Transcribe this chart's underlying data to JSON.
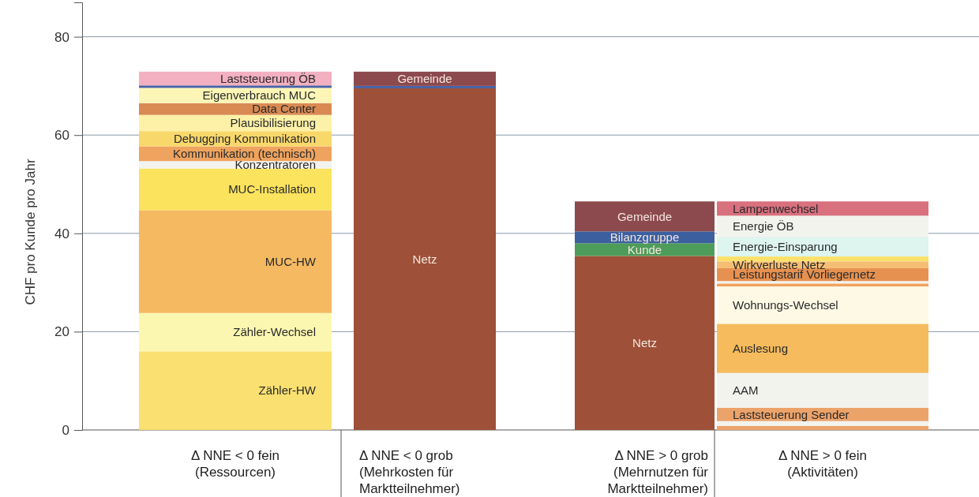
{
  "chart_data": {
    "type": "bar",
    "stacked": true,
    "ylabel": "CHF pro Kunde pro Jahr",
    "categories": [
      "Δ NNE < 0 fein\n(Ressourcen)",
      "Δ NNE < 0 grob\n(Mehrkosten für\nMarktteilnehmer)",
      "Δ NNE > 0 grob\n(Mehrnutzen für\nMarktteilnehmer)",
      "Δ NNE > 0 fein\n(Aktivitäten)"
    ],
    "ylim": [
      0,
      87
    ],
    "yticks": [
      0,
      20,
      40,
      60,
      80
    ],
    "grid": "y",
    "series": [
      {
        "name": "Zähler-HW",
        "color": "#f9e070",
        "values": [
          16,
          null,
          null,
          null
        ]
      },
      {
        "name": "Zähler-Wechsel",
        "color": "#fcf7b0",
        "values": [
          7.8,
          null,
          null,
          null
        ]
      },
      {
        "name": "MUC-HW",
        "color": "#f4b961",
        "values": [
          20.9,
          null,
          null,
          null
        ]
      },
      {
        "name": "MUC-Installation",
        "color": "#fbe35d",
        "values": [
          8.5,
          null,
          null,
          null
        ]
      },
      {
        "name": "Konzentratoren",
        "color": "#f3f3ee",
        "values": [
          1.5,
          null,
          null,
          null
        ]
      },
      {
        "name": "Kommunikation (technisch)",
        "color": "#eea35e",
        "values": [
          3,
          null,
          null,
          null
        ]
      },
      {
        "name": "Debugging Kommunikation",
        "color": "#f9d86b",
        "values": [
          3.1,
          null,
          null,
          null
        ]
      },
      {
        "name": "Plausibilisierung",
        "color": "#fcf1a6",
        "values": [
          3.3,
          null,
          null,
          null
        ]
      },
      {
        "name": "Data Center",
        "color": "#d98a52",
        "values": [
          2.4,
          null,
          null,
          null
        ]
      },
      {
        "name": "Eigenverbrauch MUC",
        "color": "#fcf5b6",
        "values": [
          3.1,
          null,
          null,
          null
        ]
      },
      {
        "color": "#4a64a6",
        "values": [
          0.5,
          null,
          null,
          null
        ]
      },
      {
        "name": "Laststeuerung ÖB",
        "color": "#f2b0c0",
        "values": [
          2.8,
          null,
          null,
          null
        ]
      },
      {
        "name": "Netz",
        "color": "#9e5038",
        "values": [
          null,
          69.5,
          35.4,
          null
        ]
      },
      {
        "color": "#4a64a6",
        "values": [
          null,
          0.5,
          null,
          null
        ]
      },
      {
        "name": "Kunde",
        "color": "#4e9c5a",
        "values": [
          null,
          null,
          2.6,
          null
        ]
      },
      {
        "name": "Bilanzgruppe",
        "color": "#3c5fa0",
        "values": [
          null,
          null,
          2.4,
          null
        ]
      },
      {
        "name": "Gemeinde",
        "color": "#8c4a4e",
        "values": [
          null,
          2.9,
          6.1,
          null
        ]
      },
      {
        "color": "#eca36a",
        "values": [
          null,
          null,
          null,
          0.8
        ]
      },
      {
        "color": "#f3f3ee",
        "values": [
          null,
          null,
          null,
          1
        ]
      },
      {
        "name": "Laststeuerung Sender",
        "color": "#eca36a",
        "values": [
          null,
          null,
          null,
          2.7
        ]
      },
      {
        "name": "AAM",
        "color": "#f3f3ee",
        "values": [
          null,
          null,
          null,
          7.1
        ]
      },
      {
        "name": "Auslesung",
        "color": "#f5bb5c",
        "values": [
          null,
          null,
          null,
          10
        ]
      },
      {
        "name": "Wohnungs-Wechsel",
        "color": "#fdf9e4",
        "values": [
          null,
          null,
          null,
          7.6
        ]
      },
      {
        "color": "#eea35e",
        "values": [
          null,
          null,
          null,
          0.6
        ]
      },
      {
        "color": "#f3f3ee",
        "values": [
          null,
          null,
          null,
          0.5
        ]
      },
      {
        "name": "Leistungstarif Vorliegernetz",
        "color": "#e79150",
        "values": [
          null,
          null,
          null,
          2.6
        ]
      },
      {
        "name": "Wirkverluste Netz",
        "color": "#f6be74",
        "values": [
          null,
          null,
          null,
          1.4
        ]
      },
      {
        "color": "#fbe06a",
        "values": [
          null,
          null,
          null,
          1
        ]
      },
      {
        "name": "Energie-Einsparung",
        "color": "#ddf4ef",
        "values": [
          null,
          null,
          null,
          4
        ]
      },
      {
        "name": "Energie ÖB",
        "color": "#f3f3ee",
        "values": [
          null,
          null,
          null,
          4.3
        ]
      },
      {
        "name": "Lampenwechsel",
        "color": "#d8707e",
        "values": [
          null,
          null,
          null,
          2.9
        ]
      }
    ]
  }
}
